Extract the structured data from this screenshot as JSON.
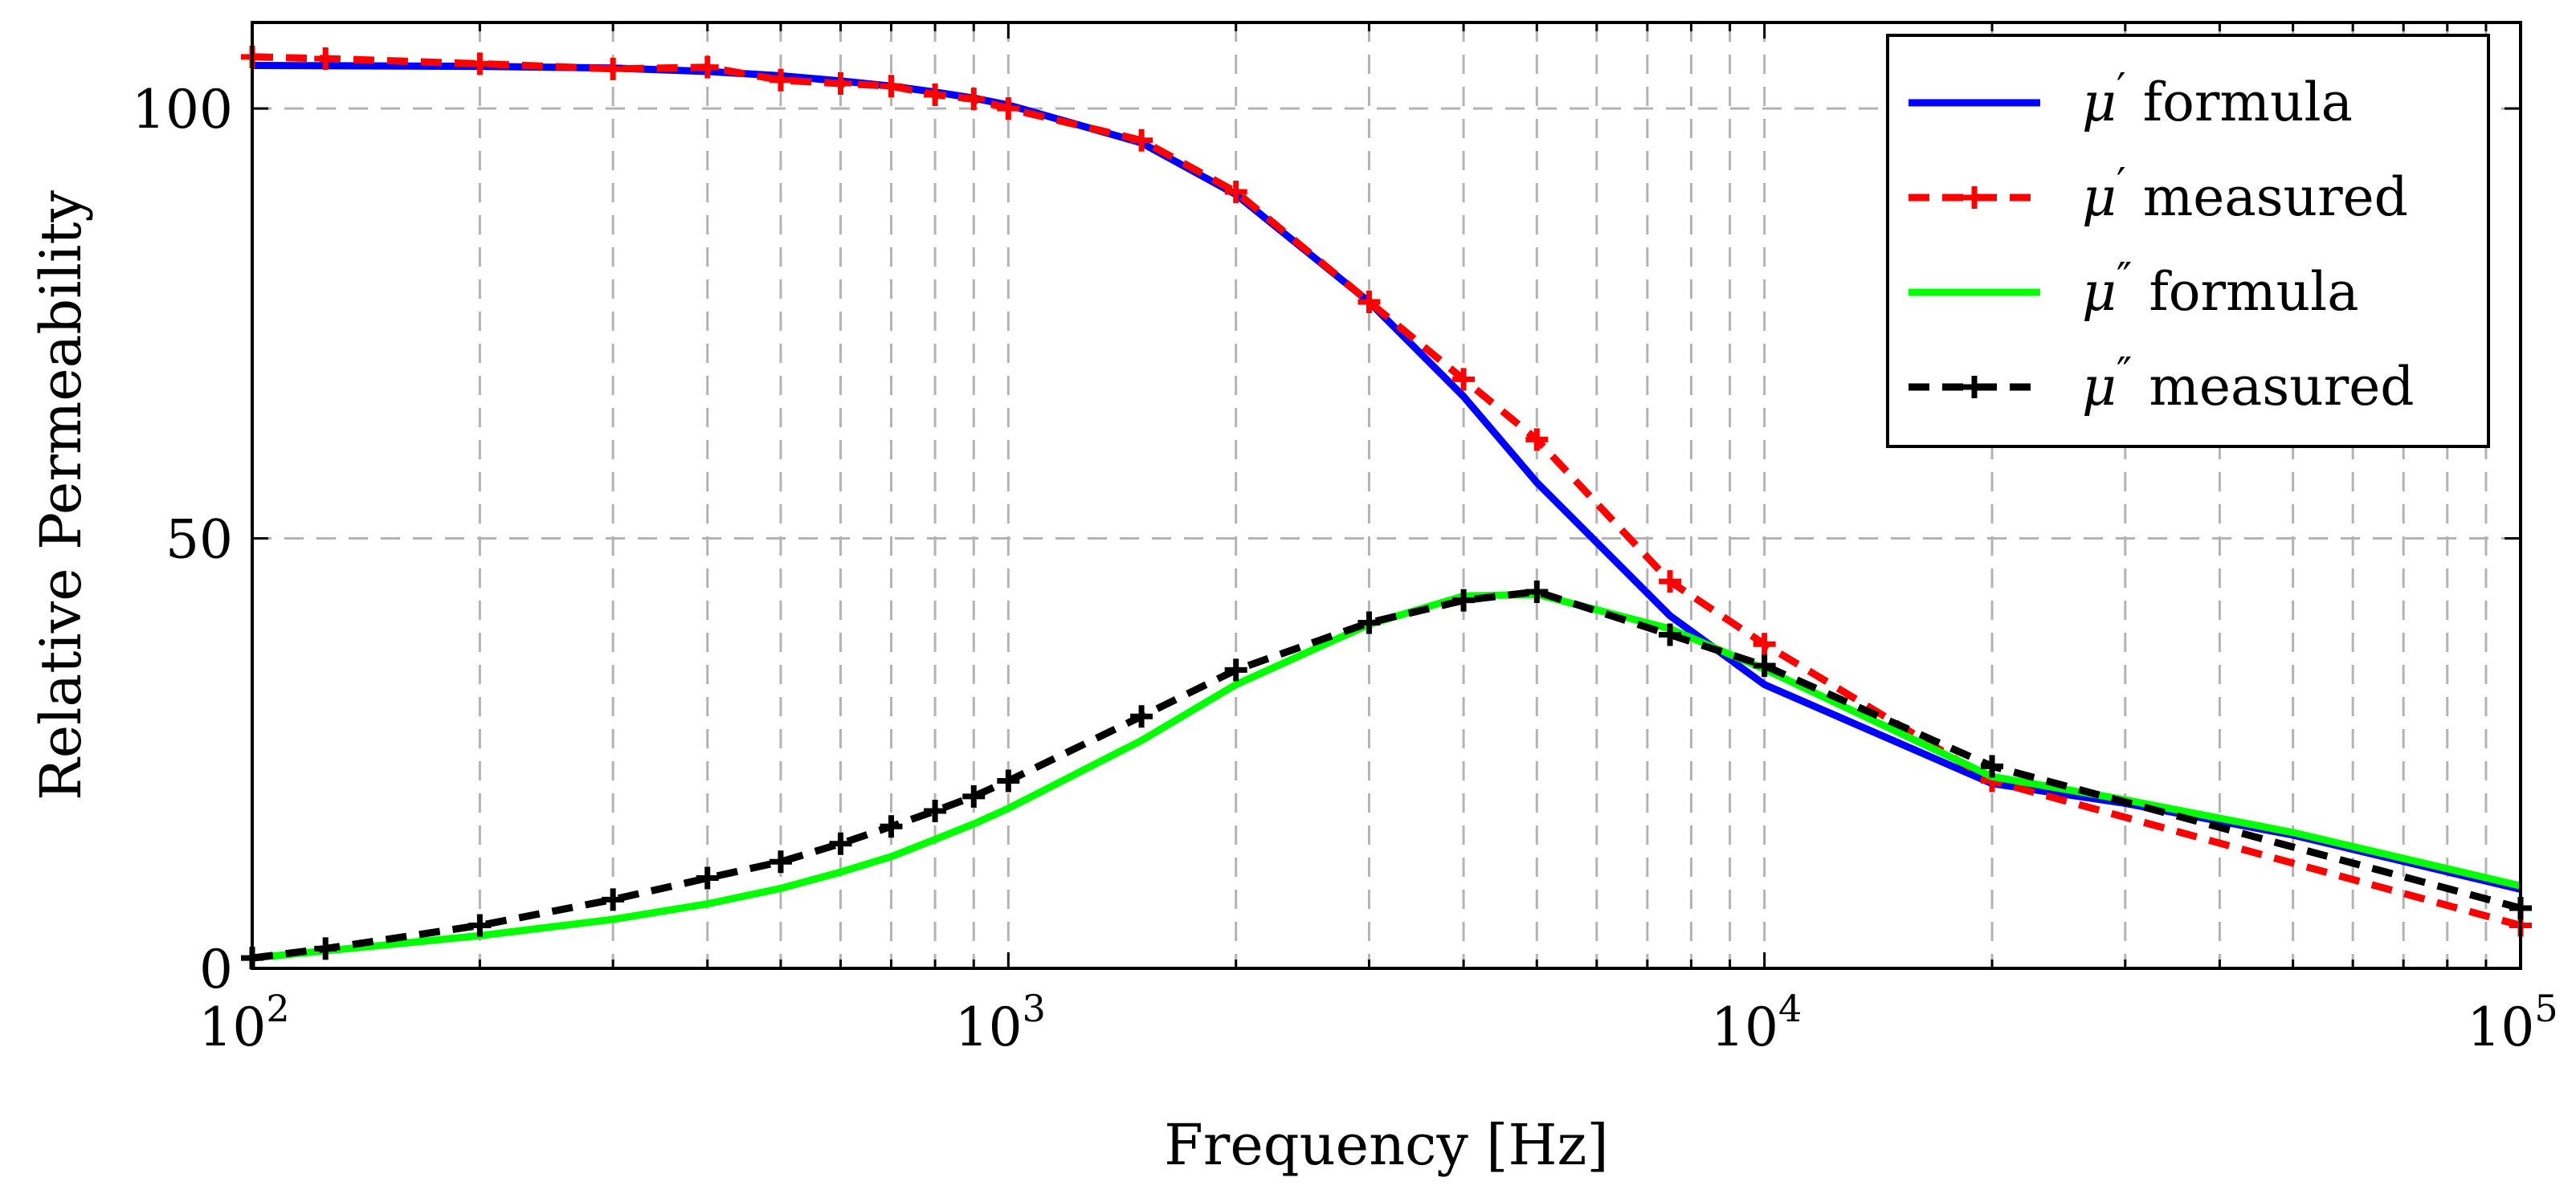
{
  "chart_data": {
    "type": "line",
    "xlabel": "Frequency [Hz]",
    "ylabel": "Relative Permeability",
    "xscale": "log",
    "xlim": [
      100,
      100000
    ],
    "ylim": [
      0,
      110
    ],
    "grid": true,
    "legend_position": "top-right",
    "x_ticks": [
      {
        "base": "10",
        "exp": "2"
      },
      {
        "base": "10",
        "exp": "3"
      },
      {
        "base": "10",
        "exp": "4"
      },
      {
        "base": "10",
        "exp": "5"
      }
    ],
    "y_ticks": [
      "0",
      "50",
      "100"
    ],
    "series": [
      {
        "name": "μ′ formula",
        "legend": {
          "sym": "μ",
          "prime": "′",
          "rest": " formula"
        },
        "color": "#0000ff",
        "style": "solid",
        "marker": "none",
        "x": [
          100,
          200,
          300,
          400,
          500,
          600,
          700,
          800,
          900,
          1000,
          1500,
          2000,
          3000,
          4000,
          5000,
          7500,
          10000,
          20000,
          30000,
          50000,
          100000
        ],
        "y": [
          105,
          104.9,
          104.7,
          104.3,
          103.8,
          103.2,
          102.6,
          101.9,
          101.2,
          100.4,
          96,
          90,
          77.5,
          66.5,
          56.5,
          41,
          33,
          21.5,
          19.2,
          15.5,
          9.2
        ]
      },
      {
        "name": "μ′ measured",
        "legend": {
          "sym": "μ",
          "prime": "′",
          "rest": " measured"
        },
        "color": "#ff0000",
        "style": "dashed",
        "marker": "plus",
        "x": [
          100,
          125,
          200,
          300,
          400,
          500,
          600,
          700,
          800,
          900,
          1000,
          1500,
          2000,
          3000,
          4000,
          5000,
          7500,
          10000,
          20000,
          100000
        ],
        "y": [
          106,
          105.8,
          105.2,
          104.6,
          104.8,
          103.3,
          102.9,
          102.6,
          101.6,
          101.1,
          100,
          96.3,
          90.3,
          77.5,
          68.5,
          61.5,
          45,
          37.7,
          21.8,
          5
        ]
      },
      {
        "name": "μ″ formula",
        "legend": {
          "sym": "μ",
          "prime": "″",
          "rest": " formula"
        },
        "color": "#00ff00",
        "style": "solid",
        "marker": "none",
        "x": [
          100,
          200,
          300,
          400,
          500,
          600,
          700,
          800,
          900,
          1000,
          1500,
          2000,
          3000,
          4000,
          5000,
          7500,
          10000,
          20000,
          30000,
          50000,
          100000
        ],
        "y": [
          1.2,
          3.8,
          5.7,
          7.5,
          9.3,
          11.2,
          13,
          15,
          16.8,
          18.6,
          26.5,
          33,
          40,
          43.3,
          43.5,
          39.5,
          34.8,
          22.3,
          19.6,
          15.8,
          9.6
        ]
      },
      {
        "name": "μ″ measured",
        "legend": {
          "sym": "μ",
          "prime": "″",
          "rest": " measured"
        },
        "color": "#000000",
        "style": "dashed",
        "marker": "plus",
        "x": [
          100,
          125,
          200,
          300,
          400,
          500,
          600,
          700,
          800,
          900,
          1000,
          1500,
          2000,
          3000,
          4000,
          5000,
          7500,
          10000,
          20000,
          100000
        ],
        "y": [
          1.2,
          2.3,
          5,
          8,
          10.5,
          12.4,
          14.5,
          16.5,
          18.3,
          20,
          21.8,
          29.3,
          34.7,
          40.2,
          42.8,
          43.8,
          38.8,
          35.2,
          23.5,
          7
        ]
      }
    ]
  }
}
